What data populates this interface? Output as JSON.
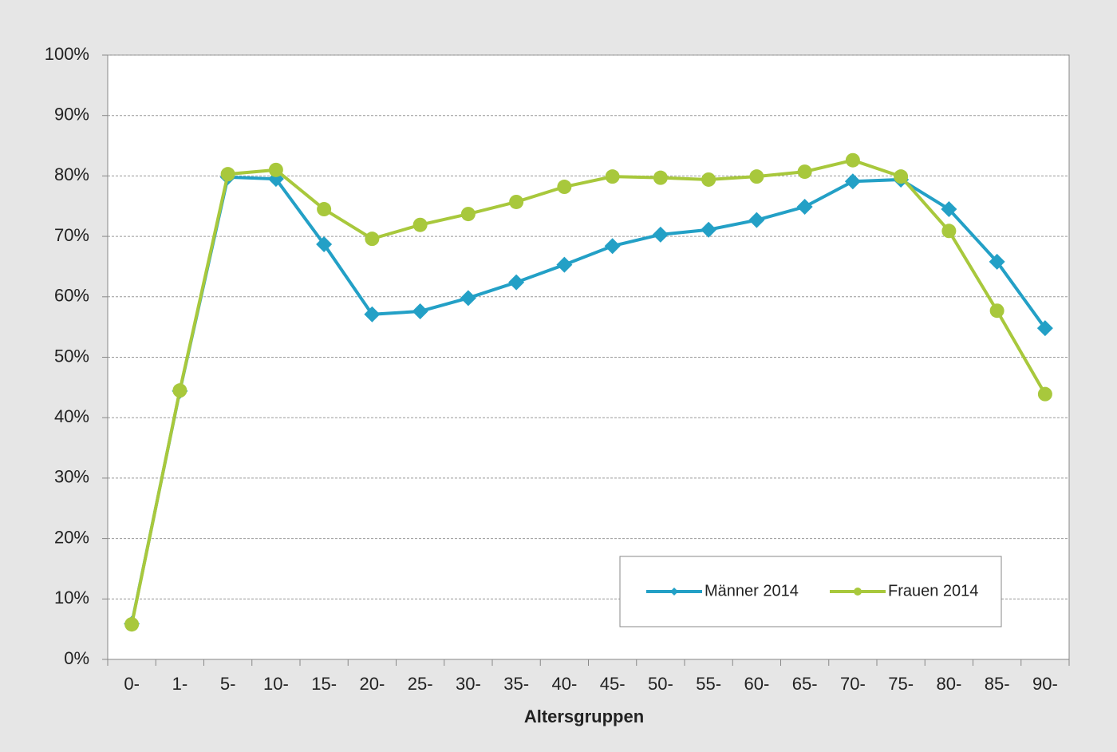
{
  "chart_data": {
    "type": "line",
    "xlabel": "Altersgruppen",
    "categories": [
      "0-",
      "1-",
      "5-",
      "10-",
      "15-",
      "20-",
      "25-",
      "30-",
      "35-",
      "40-",
      "45-",
      "50-",
      "55-",
      "60-",
      "65-",
      "70-",
      "75-",
      "80-",
      "85-",
      "90-"
    ],
    "series": [
      {
        "name": "Männer 2014",
        "color": "#23a0c6",
        "marker": "diamond",
        "values": [
          5.9,
          44.4,
          79.8,
          79.5,
          68.7,
          57.1,
          57.6,
          59.8,
          62.4,
          65.3,
          68.4,
          70.3,
          71.1,
          72.7,
          74.9,
          79.1,
          79.4,
          74.5,
          65.8,
          54.8
        ]
      },
      {
        "name": "Frauen 2014",
        "color": "#a8c83c",
        "marker": "circle",
        "values": [
          5.8,
          44.5,
          80.3,
          81.0,
          74.5,
          69.6,
          71.9,
          73.7,
          75.7,
          78.2,
          79.9,
          79.7,
          79.4,
          79.9,
          80.7,
          82.6,
          79.9,
          70.9,
          57.7,
          43.9
        ]
      }
    ],
    "ylim": [
      0,
      100
    ],
    "yticks": [
      {
        "value": 0,
        "label": "0%"
      },
      {
        "value": 10,
        "label": "10%"
      },
      {
        "value": 20,
        "label": "20%"
      },
      {
        "value": 30,
        "label": "30%"
      },
      {
        "value": 40,
        "label": "40%"
      },
      {
        "value": 50,
        "label": "50%"
      },
      {
        "value": 60,
        "label": "60%"
      },
      {
        "value": 70,
        "label": "70%"
      },
      {
        "value": 80,
        "label": "80%"
      },
      {
        "value": 90,
        "label": "90%"
      },
      {
        "value": 100,
        "label": "100%"
      }
    ],
    "grid": true,
    "legend": "lower right"
  }
}
